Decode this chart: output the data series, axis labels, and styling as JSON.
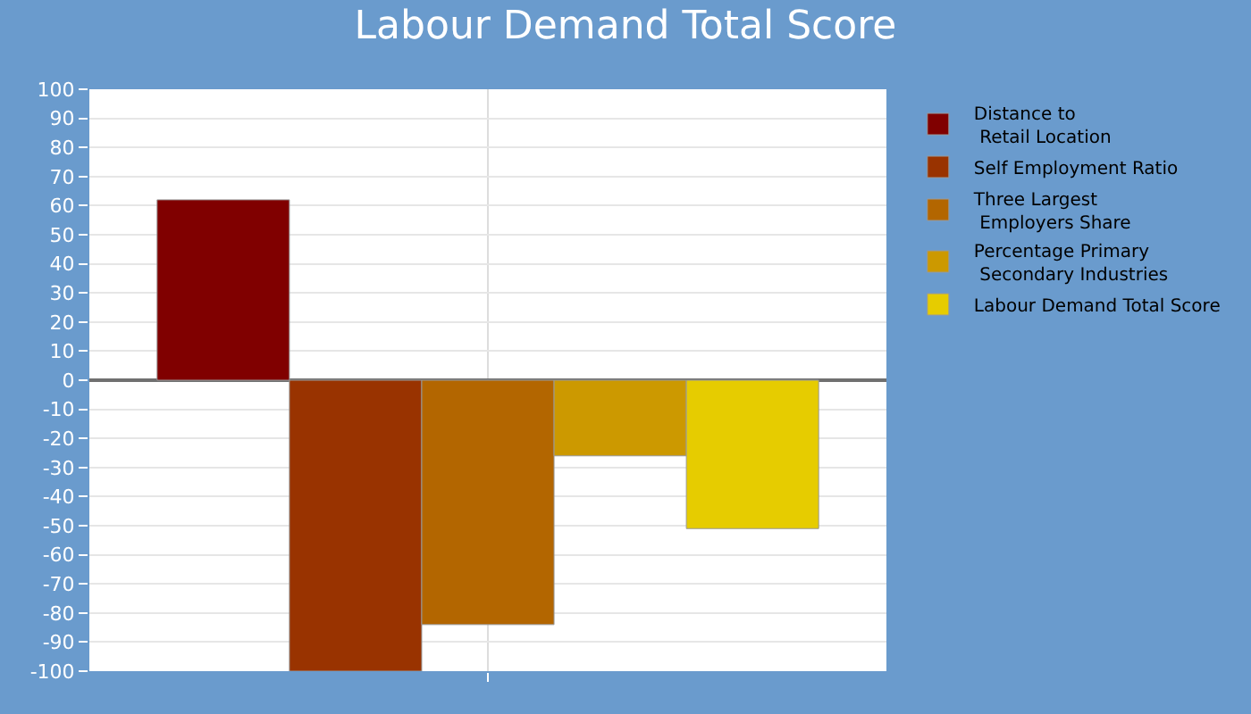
{
  "chart_data": {
    "type": "bar",
    "title": "Labour Demand Total Score",
    "categories": [
      null
    ],
    "series": [
      {
        "name": "Distance to\nRetail Location",
        "color": "#800000",
        "values": [
          62
        ]
      },
      {
        "name": "Self Employment Ratio",
        "color": "#993300",
        "values": [
          -100
        ]
      },
      {
        "name": "Three Largest\nEmployers Share",
        "color": "#b36600",
        "values": [
          -84
        ]
      },
      {
        "name": "Percentage Primary\nSecondary Industries",
        "color": "#cc9900",
        "values": [
          -26
        ]
      },
      {
        "name": "Labour Demand Total Score",
        "color": "#e6cc00",
        "values": [
          -51
        ]
      }
    ],
    "ylim": [
      -100,
      100
    ],
    "yticks": [
      -100,
      -90,
      -80,
      -70,
      -60,
      -50,
      -40,
      -30,
      -20,
      -10,
      0,
      10,
      20,
      30,
      40,
      50,
      60,
      70,
      80,
      90,
      100
    ],
    "grid": true,
    "legend": "right"
  }
}
